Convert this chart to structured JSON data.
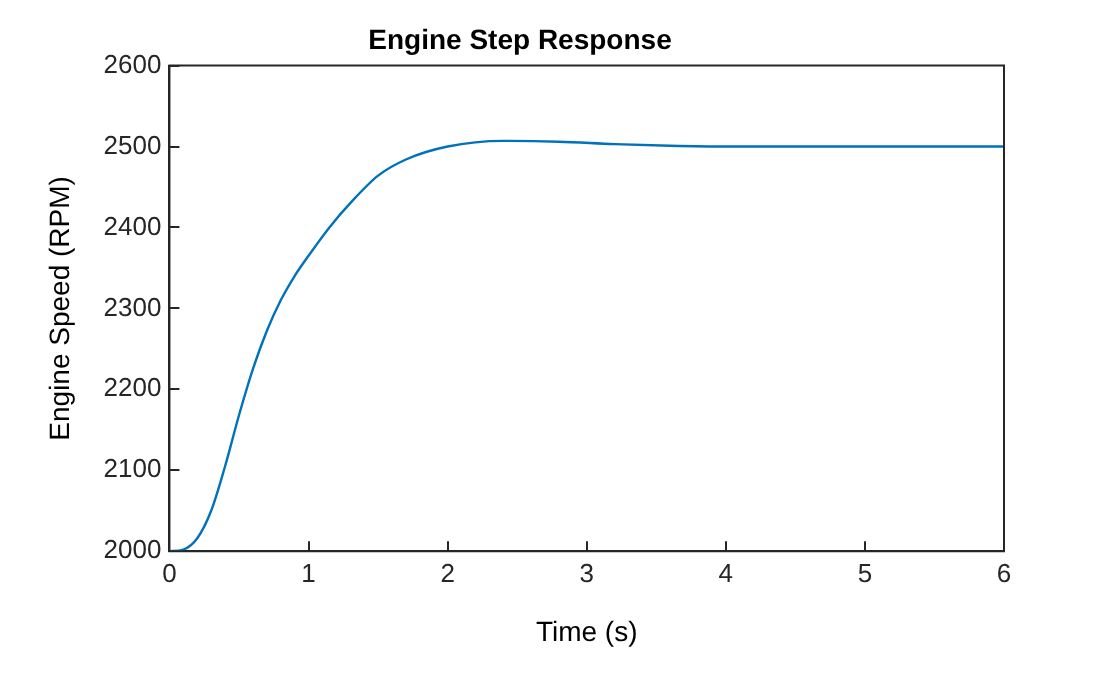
{
  "chart_data": {
    "type": "line",
    "title": "Engine Step Response",
    "xlabel": "Time (s)",
    "ylabel": "Engine Speed (RPM)",
    "x": [
      0,
      0.1,
      0.2,
      0.3,
      0.4,
      0.5,
      0.6,
      0.7,
      0.8,
      0.9,
      1.0,
      1.15,
      1.3,
      1.5,
      1.7,
      2.0,
      2.4,
      2.8,
      3.2,
      3.6,
      4,
      5,
      6
    ],
    "series": [
      {
        "color": "#0072bd",
        "values": [
          2000,
          2002,
          2016,
          2050,
          2105,
          2168,
          2225,
          2272,
          2310,
          2340,
          2365,
          2400,
          2430,
          2464,
          2484,
          2500,
          2507,
          2506,
          2503,
          2501,
          2500,
          2500,
          2500
        ]
      }
    ],
    "xlim": [
      0,
      6
    ],
    "xticks": [
      0,
      1,
      2,
      3,
      4,
      5,
      6
    ],
    "ylim": [
      2000,
      2600
    ],
    "yticks": [
      2000,
      2100,
      2200,
      2300,
      2400,
      2500,
      2600
    ],
    "grid": false,
    "legend": false,
    "marker": "none",
    "line_style": "solid"
  }
}
